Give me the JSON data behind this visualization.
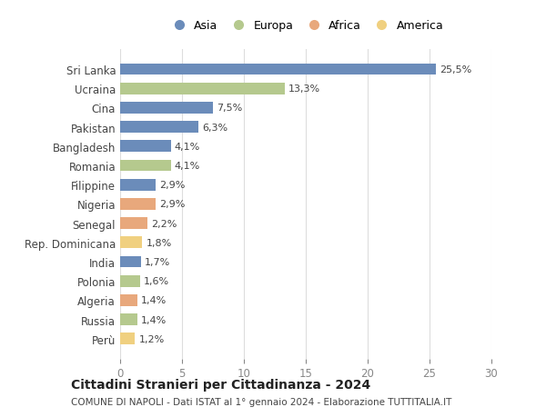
{
  "countries": [
    "Sri Lanka",
    "Ucraina",
    "Cina",
    "Pakistan",
    "Bangladesh",
    "Romania",
    "Filippine",
    "Nigeria",
    "Senegal",
    "Rep. Dominicana",
    "India",
    "Polonia",
    "Algeria",
    "Russia",
    "Perù"
  ],
  "values": [
    25.5,
    13.3,
    7.5,
    6.3,
    4.1,
    4.1,
    2.9,
    2.9,
    2.2,
    1.8,
    1.7,
    1.6,
    1.4,
    1.4,
    1.2
  ],
  "labels": [
    "25,5%",
    "13,3%",
    "7,5%",
    "6,3%",
    "4,1%",
    "4,1%",
    "2,9%",
    "2,9%",
    "2,2%",
    "1,8%",
    "1,7%",
    "1,6%",
    "1,4%",
    "1,4%",
    "1,2%"
  ],
  "continents": [
    "Asia",
    "Europa",
    "Asia",
    "Asia",
    "Asia",
    "Europa",
    "Asia",
    "Africa",
    "Africa",
    "America",
    "Asia",
    "Europa",
    "Africa",
    "Europa",
    "America"
  ],
  "colors": {
    "Asia": "#6b8cba",
    "Europa": "#b5c98e",
    "Africa": "#e8a87c",
    "America": "#f0d080"
  },
  "legend_order": [
    "Asia",
    "Europa",
    "Africa",
    "America"
  ],
  "xlim": [
    0,
    30
  ],
  "xticks": [
    0,
    5,
    10,
    15,
    20,
    25,
    30
  ],
  "title": "Cittadini Stranieri per Cittadinanza - 2024",
  "subtitle": "COMUNE DI NAPOLI - Dati ISTAT al 1° gennaio 2024 - Elaborazione TUTTITALIA.IT",
  "background_color": "#ffffff",
  "grid_color": "#dddddd"
}
